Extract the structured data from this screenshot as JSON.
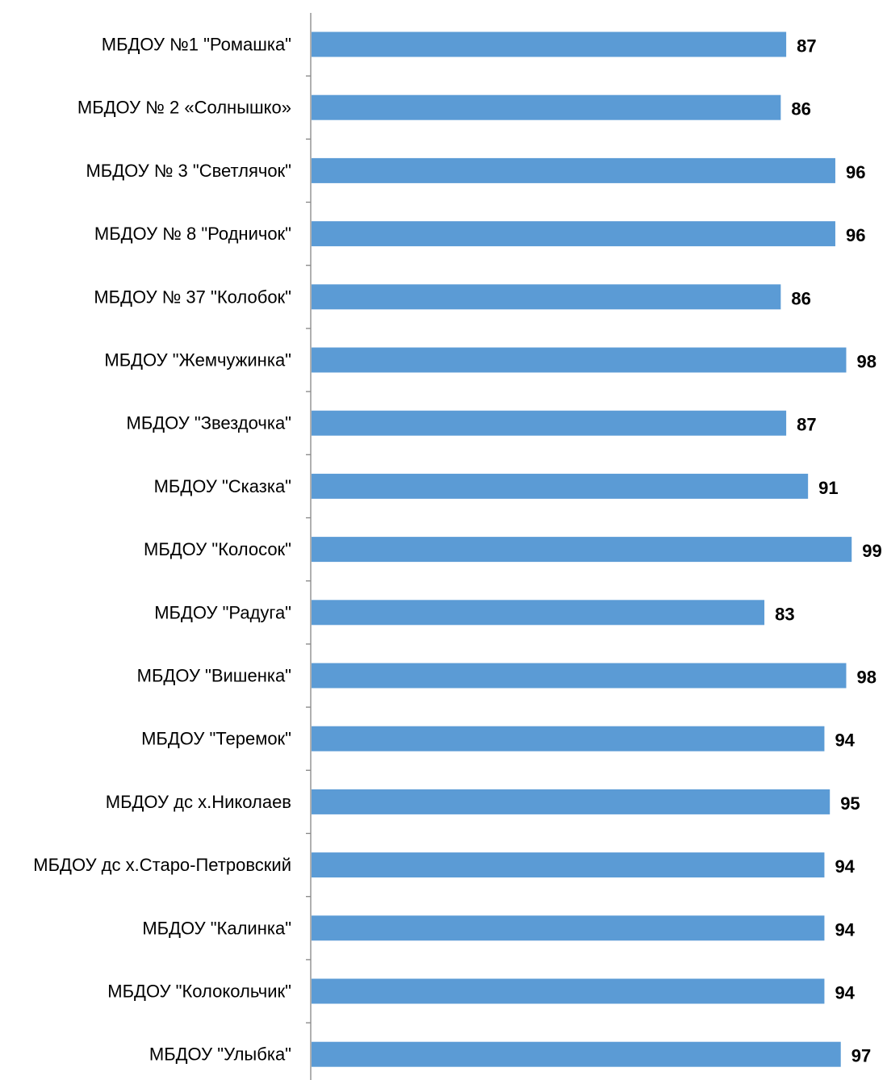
{
  "chart_data": {
    "type": "bar",
    "orientation": "horizontal",
    "title": "",
    "xlabel": "",
    "ylabel": "",
    "categories": [
      "МБДОУ №1 \"Ромашка\"",
      "МБДОУ № 2 «Солнышко»",
      "МБДОУ № 3 \"Светлячок\"",
      "МБДОУ № 8 \"Родничок\"",
      "МБДОУ № 37 \"Колобок\"",
      "МБДОУ \"Жемчужинка\"",
      "МБДОУ \"Звездочка\"",
      "МБДОУ \"Сказка\"",
      "МБДОУ \"Колосок\"",
      "МБДОУ \"Радуга\"",
      "МБДОУ \"Вишенка\"",
      "МБДОУ \"Теремок\"",
      "МБДОУ дс х.Николаев",
      "МБДОУ дс х.Старо-Петровский",
      "МБДОУ \"Калинка\"",
      "МБДОУ \"Колокольчик\"",
      "МБДОУ \"Улыбка\""
    ],
    "values": [
      87,
      86,
      96,
      96,
      86,
      98,
      87,
      91,
      99,
      83,
      98,
      94,
      95,
      94,
      94,
      94,
      97
    ],
    "xlim": [
      0,
      100
    ],
    "grid": false,
    "legend": "none",
    "data_labels": true,
    "colors": {
      "bar": "#5b9bd5",
      "axis": "#868686",
      "text": "#000000"
    }
  }
}
